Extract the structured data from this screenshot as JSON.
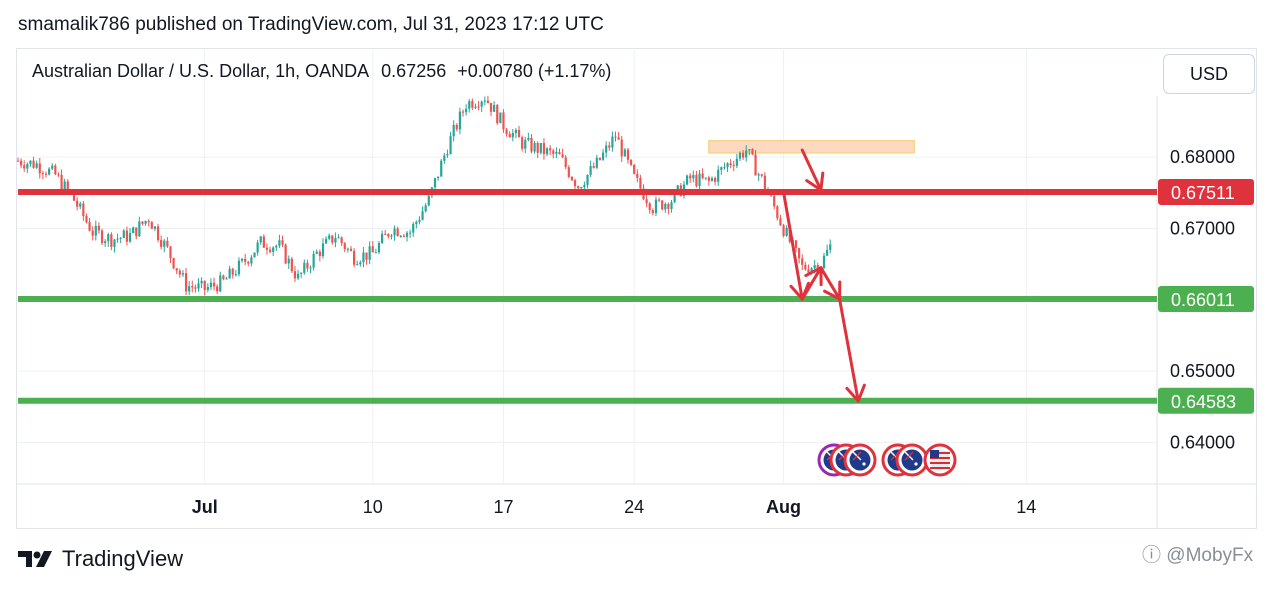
{
  "header": {
    "publisher_line": "smamalik786 published on TradingView.com, Jul 31, 2023 17:12 UTC"
  },
  "legend": {
    "symbol": "Australian Dollar / U.S. Dollar, 1h, OANDA",
    "last": "0.67256",
    "change": "+0.00780 (+1.17%)"
  },
  "currency_button": "USD",
  "footer": {
    "brand": "TradingView",
    "watermark": "ⓘ @MobyFx"
  },
  "chart_data": {
    "type": "candlestick",
    "symbol": "AUDUSD",
    "timeframe": "1h",
    "y_axis": {
      "ticks": [
        0.68,
        0.67,
        0.65,
        0.64
      ],
      "tick_labels": [
        "0.68000",
        "0.67000",
        "0.65000",
        "0.64000"
      ],
      "range": [
        0.6343,
        0.6897
      ]
    },
    "x_axis": {
      "ticks": [
        {
          "label": "Jul",
          "date": "2023-07-01"
        },
        {
          "label": "10",
          "date": "2023-07-10"
        },
        {
          "label": "17",
          "date": "2023-07-17"
        },
        {
          "label": "24",
          "date": "2023-07-24"
        },
        {
          "label": "Aug",
          "date": "2023-08-01"
        },
        {
          "label": "14",
          "date": "2023-08-14"
        }
      ],
      "range_dates": [
        "2023-06-21",
        "2023-08-21"
      ]
    },
    "price_path": [
      [
        "2023-06-21",
        0.6795
      ],
      [
        "2023-06-22",
        0.679
      ],
      [
        "2023-06-23",
        0.6775
      ],
      [
        "2023-06-24",
        0.674
      ],
      [
        "2023-06-25",
        0.6695
      ],
      [
        "2023-06-26",
        0.6685
      ],
      [
        "2023-06-27",
        0.669
      ],
      [
        "2023-06-28",
        0.6715
      ],
      [
        "2023-06-29",
        0.667
      ],
      [
        "2023-06-30",
        0.662
      ],
      [
        "2023-07-01",
        0.6615
      ],
      [
        "2023-07-02",
        0.6625
      ],
      [
        "2023-07-03",
        0.665
      ],
      [
        "2023-07-04",
        0.668
      ],
      [
        "2023-07-05",
        0.6675
      ],
      [
        "2023-07-06",
        0.663
      ],
      [
        "2023-07-07",
        0.6665
      ],
      [
        "2023-07-08",
        0.669
      ],
      [
        "2023-07-09",
        0.666
      ],
      [
        "2023-07-10",
        0.6665
      ],
      [
        "2023-07-11",
        0.67
      ],
      [
        "2023-07-12",
        0.6695
      ],
      [
        "2023-07-13",
        0.674
      ],
      [
        "2023-07-14",
        0.6815
      ],
      [
        "2023-07-15",
        0.6875
      ],
      [
        "2023-07-16",
        0.6885
      ],
      [
        "2023-07-17",
        0.6845
      ],
      [
        "2023-07-18",
        0.682
      ],
      [
        "2023-07-19",
        0.681
      ],
      [
        "2023-07-20",
        0.68
      ],
      [
        "2023-07-21",
        0.676
      ],
      [
        "2023-07-22",
        0.679
      ],
      [
        "2023-07-23",
        0.683
      ],
      [
        "2023-07-24",
        0.677
      ],
      [
        "2023-07-25",
        0.673
      ],
      [
        "2023-07-26",
        0.674
      ],
      [
        "2023-07-27",
        0.677
      ],
      [
        "2023-07-28",
        0.6765
      ],
      [
        "2023-07-29",
        0.679
      ],
      [
        "2023-07-30",
        0.681
      ],
      [
        "2023-07-31",
        0.676
      ],
      [
        "2023-08-01",
        0.67
      ],
      [
        "2023-08-02",
        0.6645
      ],
      [
        "2023-08-03",
        0.665
      ],
      [
        "2023-08-04",
        0.67
      ],
      [
        "2023-08-05",
        0.673
      ]
    ],
    "levels": [
      {
        "price": 0.67511,
        "label": "0.67511",
        "color": "#e0323c"
      },
      {
        "price": 0.66011,
        "label": "0.66011",
        "color": "#4caf50"
      },
      {
        "price": 0.64583,
        "label": "0.64583",
        "color": "#4caf50"
      }
    ],
    "zone": {
      "from_date": "2023-07-28",
      "to_date": "2023-08-08",
      "price_low": 0.6806,
      "price_high": 0.6823,
      "color": "#fdd9c2"
    },
    "projection_path": [
      [
        "2023-08-01",
        0.6751
      ],
      [
        "2023-08-02",
        0.6601
      ],
      [
        "2023-08-03",
        0.6645
      ],
      [
        "2023-08-04",
        0.6601
      ],
      [
        "2023-08-05",
        0.6458
      ]
    ],
    "projection_hook": [
      [
        "2023-08-02",
        0.681
      ],
      [
        "2023-08-03",
        0.6754
      ]
    ],
    "colors": {
      "up": "#26a69a",
      "down": "#ef5350",
      "arrow": "#e0323c",
      "grid": "#eef0f4"
    }
  }
}
